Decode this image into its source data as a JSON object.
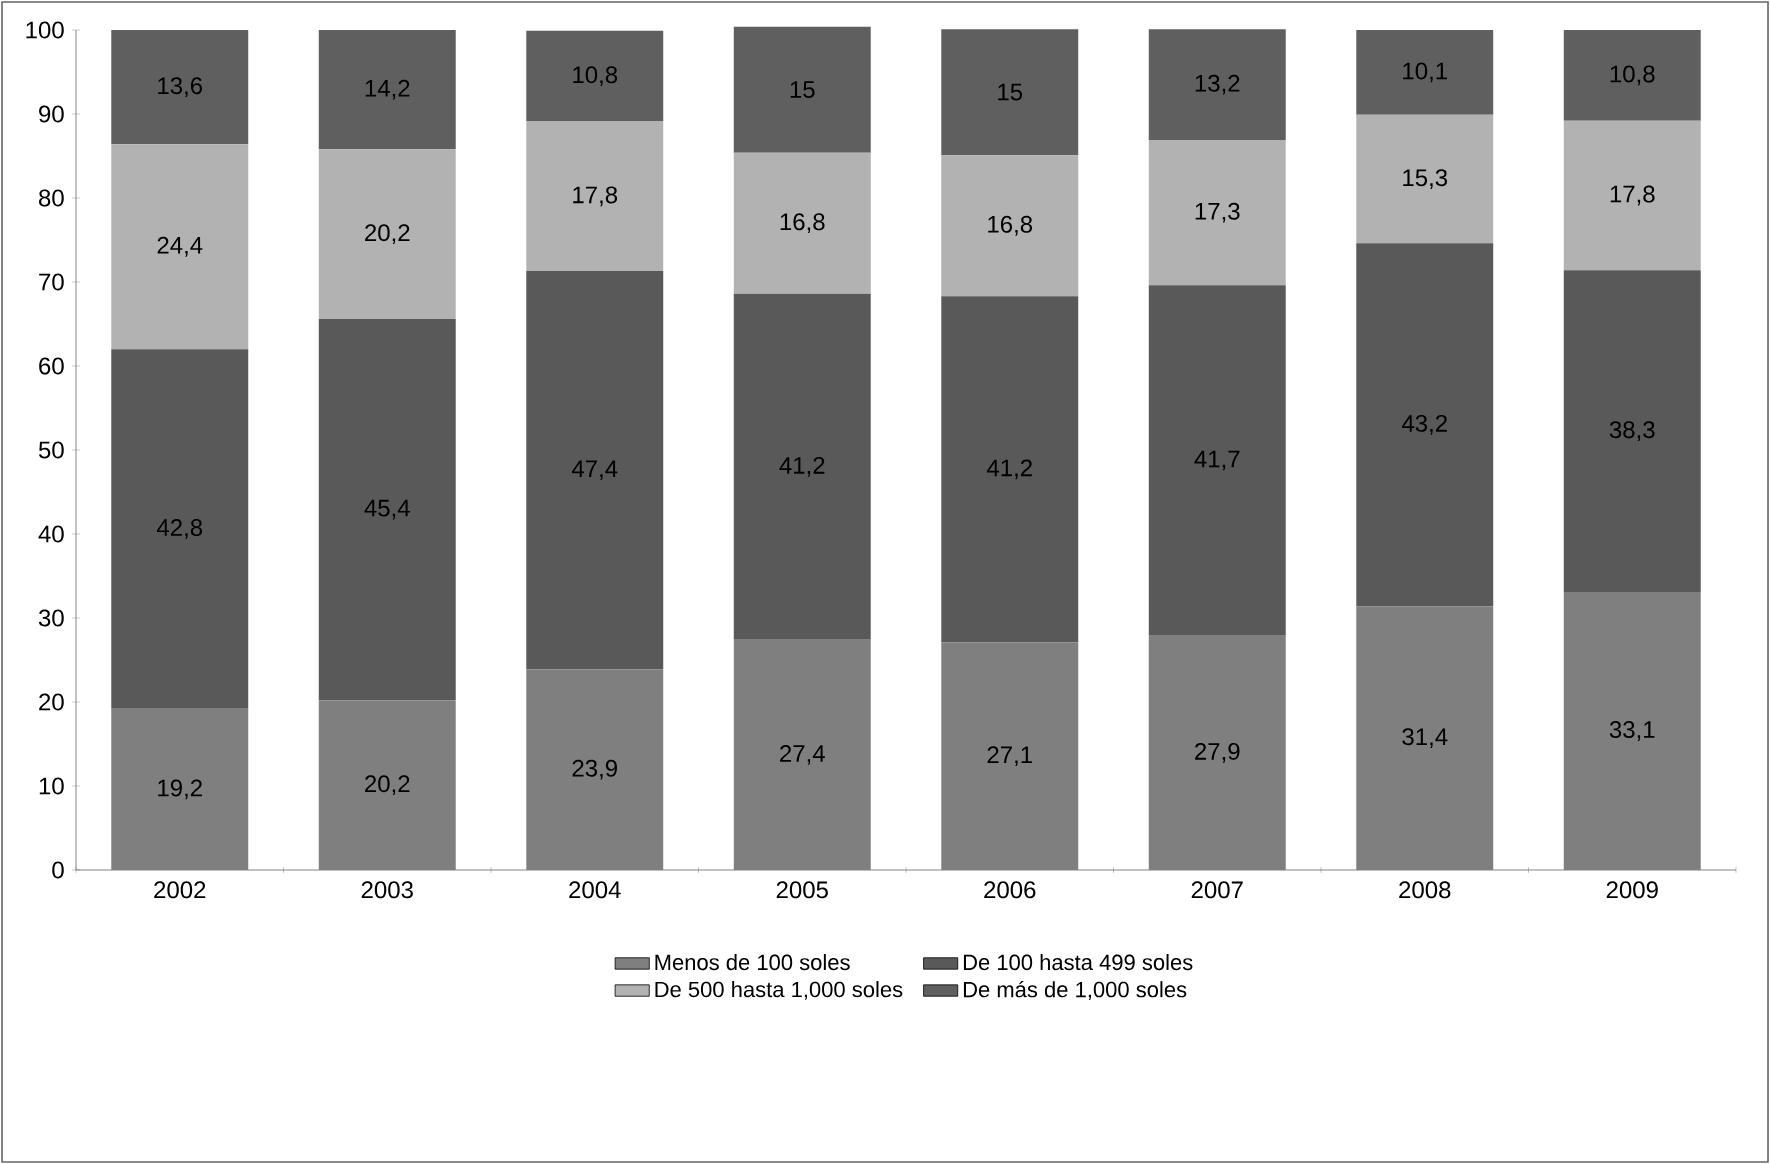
{
  "chart_data": {
    "type": "bar",
    "stacked": true,
    "categories": [
      "2002",
      "2003",
      "2004",
      "2005",
      "2006",
      "2007",
      "2008",
      "2009"
    ],
    "series": [
      {
        "name": "Menos de 100 soles",
        "color": "#7f7f7f",
        "values": [
          19.2,
          20.2,
          23.9,
          27.4,
          27.1,
          27.9,
          31.4,
          33.1
        ],
        "value_labels": [
          "19,2",
          "20,2",
          "23,9",
          "27,4",
          "27,1",
          "27,9",
          "31,4",
          "33,1"
        ]
      },
      {
        "name": "De 100 hasta 499 soles",
        "color": "#595959",
        "values": [
          42.8,
          45.4,
          47.4,
          41.2,
          41.2,
          41.7,
          43.2,
          38.3
        ],
        "value_labels": [
          "42,8",
          "45,4",
          "47,4",
          "41,2",
          "41,2",
          "41,7",
          "43,2",
          "38,3"
        ]
      },
      {
        "name": "De 500 hasta 1,000 soles",
        "color": "#b2b2b2",
        "values": [
          24.4,
          20.2,
          17.8,
          16.8,
          16.8,
          17.3,
          15.3,
          17.8
        ],
        "value_labels": [
          "24,4",
          "20,2",
          "17,8",
          "16,8",
          "16,8",
          "17,3",
          "15,3",
          "17,8"
        ]
      },
      {
        "name": "De más de 1,000 soles",
        "color": "#5f5f5f",
        "values": [
          13.6,
          14.2,
          10.8,
          15,
          15,
          13.2,
          10.1,
          10.8
        ],
        "value_labels": [
          "13,6",
          "14,2",
          "10,8",
          "15",
          "15",
          "13,2",
          "10,1",
          "10,8"
        ]
      }
    ],
    "ylim": [
      0,
      100
    ],
    "yticks": [
      0,
      10,
      20,
      30,
      40,
      50,
      60,
      70,
      80,
      90,
      100
    ],
    "legend": "bottom",
    "grid": false
  }
}
